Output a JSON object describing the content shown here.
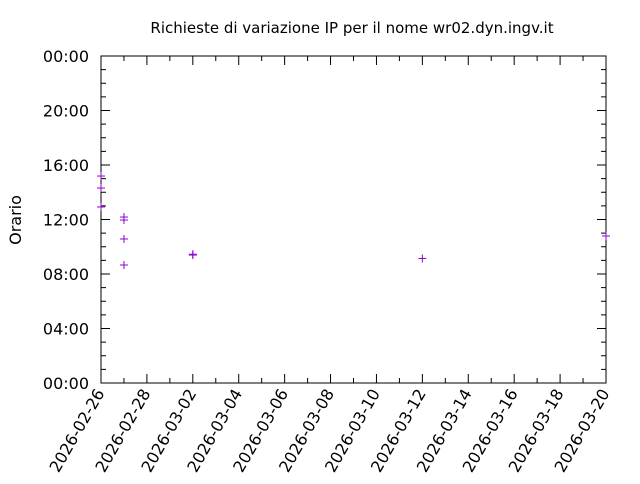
{
  "chart_data": {
    "type": "scatter",
    "title": "Richieste di variazione IP per il nome wr02.dyn.ingv.it",
    "xlabel": "",
    "ylabel": "Orario",
    "xlim": [
      "2026-02-26",
      "2026-03-20"
    ],
    "ylim": [
      0,
      24
    ],
    "x_ticks": [
      "2026-02-26",
      "2026-02-28",
      "2026-03-02",
      "2026-03-04",
      "2026-03-06",
      "2026-03-08",
      "2026-03-10",
      "2026-03-12",
      "2026-03-14",
      "2026-03-16",
      "2026-03-18",
      "2026-03-20"
    ],
    "y_ticks": [
      {
        "value": 0,
        "label": "00:00"
      },
      {
        "value": 4,
        "label": "04:00"
      },
      {
        "value": 8,
        "label": "08:00"
      },
      {
        "value": 12,
        "label": "12:00"
      },
      {
        "value": 16,
        "label": "16:00"
      },
      {
        "value": 20,
        "label": "20:00"
      },
      {
        "value": 24,
        "label": "00:00"
      }
    ],
    "grid": false,
    "marker_color": "#9400d3",
    "points": [
      {
        "x": "2026-02-26",
        "y": 15.19
      },
      {
        "x": "2026-02-26",
        "y": 14.31
      },
      {
        "x": "2026-02-26",
        "y": 12.92
      },
      {
        "x": "2026-02-27",
        "y": 12.18
      },
      {
        "x": "2026-02-27",
        "y": 11.96
      },
      {
        "x": "2026-02-27",
        "y": 10.57
      },
      {
        "x": "2026-02-27",
        "y": 8.66
      },
      {
        "x": "2026-03-02",
        "y": 9.45
      },
      {
        "x": "2026-03-02",
        "y": 9.39
      },
      {
        "x": "2026-03-12",
        "y": 9.14
      },
      {
        "x": "2026-03-20",
        "y": 10.79
      }
    ]
  }
}
